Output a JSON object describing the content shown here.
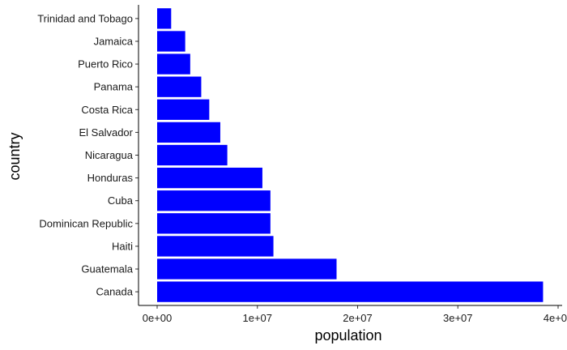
{
  "chart_data": {
    "type": "bar",
    "orientation": "horizontal",
    "xlabel": "population",
    "ylabel": "country",
    "xlim": [
      0,
      40000000
    ],
    "xticks": [
      0,
      10000000,
      20000000,
      30000000,
      40000000
    ],
    "xtick_labels": [
      "0e+00",
      "1e+07",
      "2e+07",
      "3e+07",
      "4e+07"
    ],
    "categories": [
      "Trinidad and Tobago",
      "Jamaica",
      "Puerto Rico",
      "Panama",
      "Costa Rica",
      "El Salvador",
      "Nicaragua",
      "Honduras",
      "Cuba",
      "Dominican Republic",
      "Haiti",
      "Guatemala",
      "Canada"
    ],
    "values": [
      1400000,
      2800000,
      3300000,
      4400000,
      5200000,
      6300000,
      7000000,
      10500000,
      11300000,
      11300000,
      11600000,
      17900000,
      38500000
    ],
    "bar_color": "#0000FF",
    "grid": false,
    "legend": "none"
  }
}
